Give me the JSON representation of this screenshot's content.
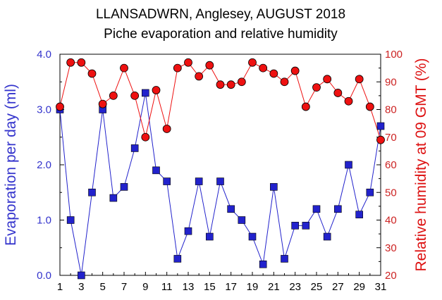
{
  "chart_data": {
    "type": "line",
    "title": "LLANSADWRN, Anglesey, AUGUST 2018",
    "subtitle": "Piche evaporation and relative humidity",
    "x": [
      1,
      2,
      3,
      4,
      5,
      6,
      7,
      8,
      9,
      10,
      11,
      12,
      13,
      14,
      15,
      16,
      17,
      18,
      19,
      20,
      21,
      22,
      23,
      24,
      25,
      26,
      27,
      28,
      29,
      30,
      31
    ],
    "x_tick_labels": [
      "1",
      "3",
      "5",
      "7",
      "9",
      "11",
      "13",
      "15",
      "17",
      "19",
      "21",
      "23",
      "25",
      "27",
      "29",
      "31"
    ],
    "xlim": [
      1,
      31
    ],
    "left_axis": {
      "label": "Evaporation per day (ml)",
      "ylim": [
        0,
        4
      ],
      "tick_labels": [
        "0.0",
        "1.0",
        "2.0",
        "3.0",
        "4.0"
      ],
      "tick_values": [
        0,
        1,
        2,
        3,
        4
      ]
    },
    "right_axis": {
      "label": "Relative humidity at 09 GMT (%)",
      "ylim": [
        20,
        100
      ],
      "tick_labels": [
        "20",
        "30",
        "40",
        "50",
        "60",
        "70",
        "80",
        "90",
        "100"
      ],
      "tick_values": [
        20,
        30,
        40,
        50,
        60,
        70,
        80,
        90,
        100
      ]
    },
    "series": [
      {
        "axis": "left",
        "color": "#2222cc",
        "marker": "square",
        "values": [
          3.0,
          1.0,
          0.0,
          1.5,
          3.0,
          1.4,
          1.6,
          2.3,
          3.3,
          1.9,
          1.7,
          0.3,
          0.8,
          1.7,
          0.7,
          1.7,
          1.2,
          1.0,
          0.7,
          0.2,
          1.6,
          0.3,
          0.9,
          0.9,
          1.2,
          0.7,
          1.2,
          2.0,
          1.1,
          1.5,
          2.7
        ]
      },
      {
        "axis": "right",
        "color": "#ee1111",
        "marker": "circle",
        "values": [
          81,
          97,
          97,
          93,
          82,
          85,
          95,
          85,
          70,
          87,
          73,
          95,
          97,
          92,
          96,
          89,
          89,
          90,
          97,
          95,
          93,
          90,
          94,
          81,
          88,
          91,
          86,
          83,
          91,
          81,
          69
        ]
      }
    ],
    "grid": false,
    "legend": "none"
  }
}
